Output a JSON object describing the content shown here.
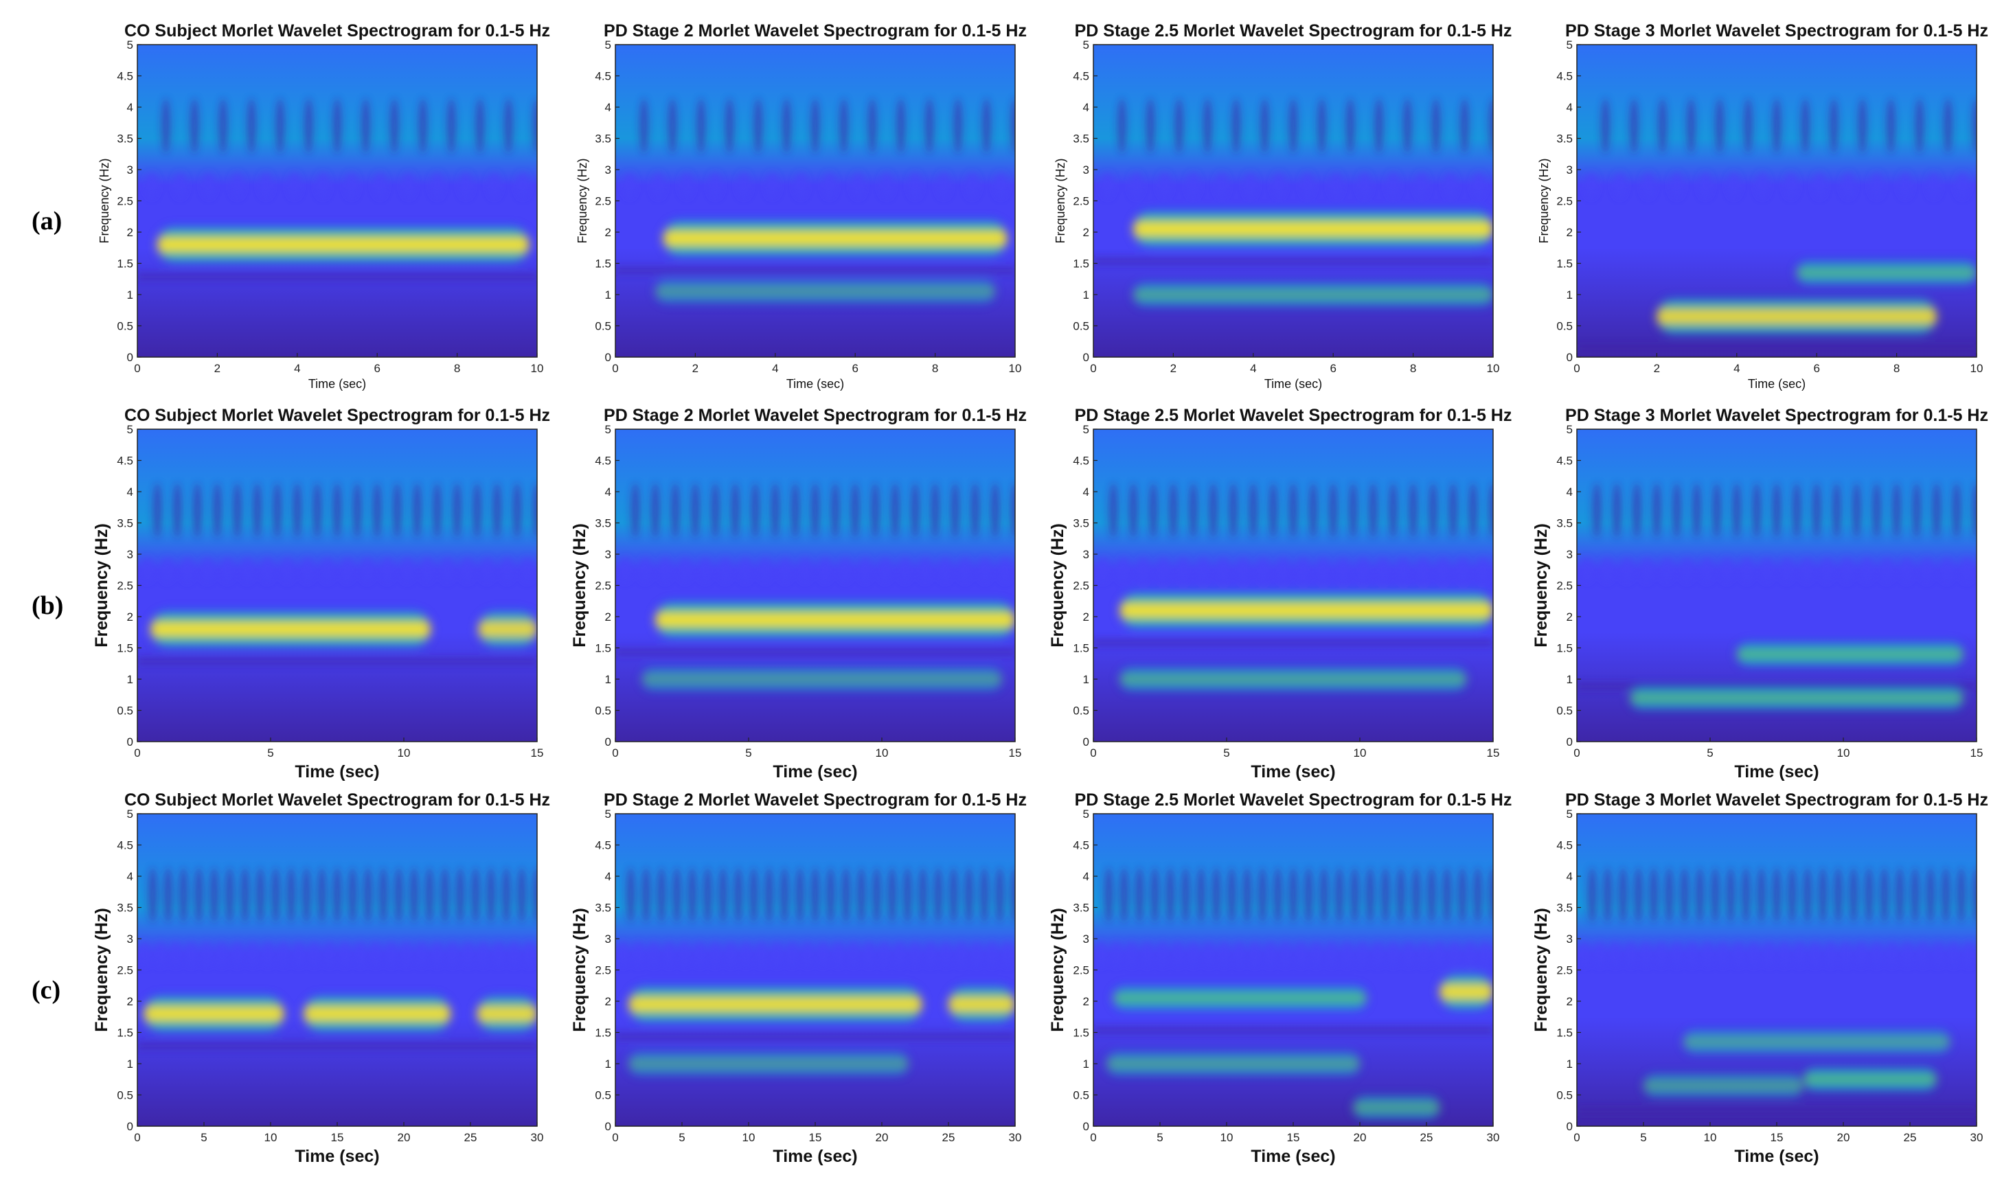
{
  "figure": {
    "row_labels": [
      "(a)",
      "(b)",
      "(c)"
    ],
    "colormap_colors": [
      "#3e26a8",
      "#4743f8",
      "#2f6ff5",
      "#1996dd",
      "#07b1c2",
      "#24bfa0",
      "#7cc45d",
      "#d2bb2e",
      "#fcd22d",
      "#f9fb15"
    ]
  },
  "chart_data": [
    {
      "type": "heatmap",
      "title": "CO Subject Morlet Wavelet Spectrogram for 0.1-5 Hz",
      "xlabel": "Time (sec)",
      "ylabel": "Frequency (Hz)",
      "xlim": [
        0,
        10
      ],
      "ylim": [
        0,
        5
      ],
      "xticks": [
        0,
        2,
        4,
        6,
        8,
        10
      ],
      "yticks": [
        0,
        0.5,
        1,
        1.5,
        2,
        2.5,
        3,
        3.5,
        4,
        4.5,
        5
      ],
      "dominant_band_hz": 1.8,
      "bands": [
        {
          "freq_hz": 1.8,
          "t_start": 0.5,
          "t_end": 9.8,
          "intensity": 0.97
        }
      ]
    },
    {
      "type": "heatmap",
      "title": "PD Stage 2 Morlet Wavelet Spectrogram for 0.1-5 Hz",
      "xlabel": "Time (sec)",
      "ylabel": "Frequency (Hz)",
      "xlim": [
        0,
        10
      ],
      "ylim": [
        0,
        5
      ],
      "xticks": [
        0,
        2,
        4,
        6,
        8,
        10
      ],
      "yticks": [
        0,
        0.5,
        1,
        1.5,
        2,
        2.5,
        3,
        3.5,
        4,
        4.5,
        5
      ],
      "dominant_band_hz": 1.9,
      "bands": [
        {
          "freq_hz": 1.9,
          "t_start": 1.2,
          "t_end": 9.8,
          "intensity": 0.97
        },
        {
          "freq_hz": 1.05,
          "t_start": 1.0,
          "t_end": 9.5,
          "intensity": 0.4
        }
      ]
    },
    {
      "type": "heatmap",
      "title": "PD Stage 2.5 Morlet Wavelet Spectrogram for 0.1-5 Hz",
      "xlabel": "Time (sec)",
      "ylabel": "Frequency (Hz)",
      "xlim": [
        0,
        10
      ],
      "ylim": [
        0,
        5
      ],
      "xticks": [
        0,
        2,
        4,
        6,
        8,
        10
      ],
      "yticks": [
        0,
        0.5,
        1,
        1.5,
        2,
        2.5,
        3,
        3.5,
        4,
        4.5,
        5
      ],
      "dominant_band_hz": 2.05,
      "bands": [
        {
          "freq_hz": 2.05,
          "t_start": 1.0,
          "t_end": 10,
          "intensity": 0.98
        },
        {
          "freq_hz": 1.0,
          "t_start": 1.0,
          "t_end": 10,
          "intensity": 0.6
        }
      ]
    },
    {
      "type": "heatmap",
      "title": "PD Stage 3 Morlet Wavelet Spectrogram for 0.1-5 Hz",
      "xlabel": "Time (sec)",
      "ylabel": "Frequency (Hz)",
      "xlim": [
        0,
        10
      ],
      "ylim": [
        0,
        5
      ],
      "xticks": [
        0,
        2,
        4,
        6,
        8,
        10
      ],
      "yticks": [
        0,
        0.5,
        1,
        1.5,
        2,
        2.5,
        3,
        3.5,
        4,
        4.5,
        5
      ],
      "dominant_band_hz": 0.65,
      "bands": [
        {
          "freq_hz": 0.65,
          "t_start": 2.0,
          "t_end": 9.0,
          "intensity": 0.85
        },
        {
          "freq_hz": 1.35,
          "t_start": 5.5,
          "t_end": 10,
          "intensity": 0.75
        }
      ]
    },
    {
      "type": "heatmap",
      "title": "CO Subject Morlet Wavelet Spectrogram for 0.1-5 Hz",
      "xlabel": "Time (sec)",
      "ylabel": "Frequency (Hz)",
      "xlim": [
        0,
        15
      ],
      "ylim": [
        0,
        5
      ],
      "xticks": [
        0,
        5,
        10,
        15
      ],
      "yticks": [
        0,
        0.5,
        1,
        1.5,
        2,
        2.5,
        3,
        3.5,
        4,
        4.5,
        5
      ],
      "dominant_band_hz": 1.8,
      "bands": [
        {
          "freq_hz": 1.8,
          "t_start": 0.5,
          "t_end": 11.0,
          "intensity": 0.97
        },
        {
          "freq_hz": 1.8,
          "t_start": 12.8,
          "t_end": 15,
          "intensity": 0.85
        }
      ]
    },
    {
      "type": "heatmap",
      "title": "PD Stage 2 Morlet Wavelet Spectrogram for 0.1-5 Hz",
      "xlabel": "Time (sec)",
      "ylabel": "Frequency (Hz)",
      "xlim": [
        0,
        15
      ],
      "ylim": [
        0,
        5
      ],
      "xticks": [
        0,
        5,
        10,
        15
      ],
      "yticks": [
        0,
        0.5,
        1,
        1.5,
        2,
        2.5,
        3,
        3.5,
        4,
        4.5,
        5
      ],
      "dominant_band_hz": 1.95,
      "bands": [
        {
          "freq_hz": 1.95,
          "t_start": 1.5,
          "t_end": 15,
          "intensity": 0.97
        },
        {
          "freq_hz": 1.0,
          "t_start": 1.0,
          "t_end": 14.5,
          "intensity": 0.4
        }
      ]
    },
    {
      "type": "heatmap",
      "title": "PD Stage 2.5 Morlet Wavelet Spectrogram for 0.1-5 Hz",
      "xlabel": "Time (sec)",
      "ylabel": "Frequency (Hz)",
      "xlim": [
        0,
        15
      ],
      "ylim": [
        0,
        5
      ],
      "xticks": [
        0,
        5,
        10,
        15
      ],
      "yticks": [
        0,
        0.5,
        1,
        1.5,
        2,
        2.5,
        3,
        3.5,
        4,
        4.5,
        5
      ],
      "dominant_band_hz": 2.1,
      "bands": [
        {
          "freq_hz": 2.1,
          "t_start": 1.0,
          "t_end": 15,
          "intensity": 0.97
        },
        {
          "freq_hz": 1.0,
          "t_start": 1.0,
          "t_end": 14.0,
          "intensity": 0.6
        }
      ]
    },
    {
      "type": "heatmap",
      "title": "PD Stage 3 Morlet Wavelet Spectrogram for 0.1-5 Hz",
      "xlabel": "Time (sec)",
      "ylabel": "Frequency (Hz)",
      "xlim": [
        0,
        15
      ],
      "ylim": [
        0,
        5
      ],
      "xticks": [
        0,
        5,
        10,
        15
      ],
      "yticks": [
        0,
        0.5,
        1,
        1.5,
        2,
        2.5,
        3,
        3.5,
        4,
        4.5,
        5
      ],
      "dominant_band_hz": 1.4,
      "bands": [
        {
          "freq_hz": 1.4,
          "t_start": 6.0,
          "t_end": 14.5,
          "intensity": 0.82
        },
        {
          "freq_hz": 0.7,
          "t_start": 2.0,
          "t_end": 14.5,
          "intensity": 0.75
        }
      ]
    },
    {
      "type": "heatmap",
      "title": "CO Subject Morlet Wavelet Spectrogram for 0.1-5 Hz",
      "xlabel": "Time (sec)",
      "ylabel": "Frequency (Hz)",
      "xlim": [
        0,
        30
      ],
      "ylim": [
        0,
        5
      ],
      "xticks": [
        0,
        5,
        10,
        15,
        20,
        25,
        30
      ],
      "yticks": [
        0,
        0.5,
        1,
        1.5,
        2,
        2.5,
        3,
        3.5,
        4,
        4.5,
        5
      ],
      "dominant_band_hz": 1.8,
      "bands": [
        {
          "freq_hz": 1.8,
          "t_start": 0.5,
          "t_end": 11.0,
          "intensity": 0.95
        },
        {
          "freq_hz": 1.8,
          "t_start": 12.5,
          "t_end": 23.5,
          "intensity": 0.95
        },
        {
          "freq_hz": 1.8,
          "t_start": 25.5,
          "t_end": 30,
          "intensity": 0.9
        }
      ]
    },
    {
      "type": "heatmap",
      "title": "PD Stage 2 Morlet Wavelet Spectrogram for 0.1-5 Hz",
      "xlabel": "Time (sec)",
      "ylabel": "Frequency (Hz)",
      "xlim": [
        0,
        30
      ],
      "ylim": [
        0,
        5
      ],
      "xticks": [
        0,
        5,
        10,
        15,
        20,
        25,
        30
      ],
      "yticks": [
        0,
        0.5,
        1,
        1.5,
        2,
        2.5,
        3,
        3.5,
        4,
        4.5,
        5
      ],
      "dominant_band_hz": 1.95,
      "bands": [
        {
          "freq_hz": 1.95,
          "t_start": 1.0,
          "t_end": 23.0,
          "intensity": 0.92
        },
        {
          "freq_hz": 1.95,
          "t_start": 25.0,
          "t_end": 30,
          "intensity": 0.9
        },
        {
          "freq_hz": 1.0,
          "t_start": 1.0,
          "t_end": 22.0,
          "intensity": 0.4
        }
      ]
    },
    {
      "type": "heatmap",
      "title": "PD Stage 2.5 Morlet Wavelet Spectrogram for 0.1-5 Hz",
      "xlabel": "Time (sec)",
      "ylabel": "Frequency (Hz)",
      "xlim": [
        0,
        30
      ],
      "ylim": [
        0,
        5
      ],
      "xticks": [
        0,
        5,
        10,
        15,
        20,
        25,
        30
      ],
      "yticks": [
        0,
        0.5,
        1,
        1.5,
        2,
        2.5,
        3,
        3.5,
        4,
        4.5,
        5
      ],
      "dominant_band_hz": 2.05,
      "bands": [
        {
          "freq_hz": 2.05,
          "t_start": 1.5,
          "t_end": 20.5,
          "intensity": 0.8
        },
        {
          "freq_hz": 2.15,
          "t_start": 26.0,
          "t_end": 30,
          "intensity": 0.92
        },
        {
          "freq_hz": 1.0,
          "t_start": 1.0,
          "t_end": 20.0,
          "intensity": 0.5
        },
        {
          "freq_hz": 0.3,
          "t_start": 19.5,
          "t_end": 26.0,
          "intensity": 0.55
        }
      ]
    },
    {
      "type": "heatmap",
      "title": "PD Stage 3 Morlet Wavelet Spectrogram for 0.1-5 Hz",
      "xlabel": "Time (sec)",
      "ylabel": "Frequency (Hz)",
      "xlim": [
        0,
        30
      ],
      "ylim": [
        0,
        5
      ],
      "xticks": [
        0,
        5,
        10,
        15,
        20,
        25,
        30
      ],
      "yticks": [
        0,
        0.5,
        1,
        1.5,
        2,
        2.5,
        3,
        3.5,
        4,
        4.5,
        5
      ],
      "dominant_band_hz": 0.75,
      "bands": [
        {
          "freq_hz": 0.75,
          "t_start": 17.0,
          "t_end": 27.0,
          "intensity": 0.8
        },
        {
          "freq_hz": 1.35,
          "t_start": 8.0,
          "t_end": 28.0,
          "intensity": 0.5
        },
        {
          "freq_hz": 0.65,
          "t_start": 5.0,
          "t_end": 17.0,
          "intensity": 0.45
        }
      ]
    }
  ]
}
